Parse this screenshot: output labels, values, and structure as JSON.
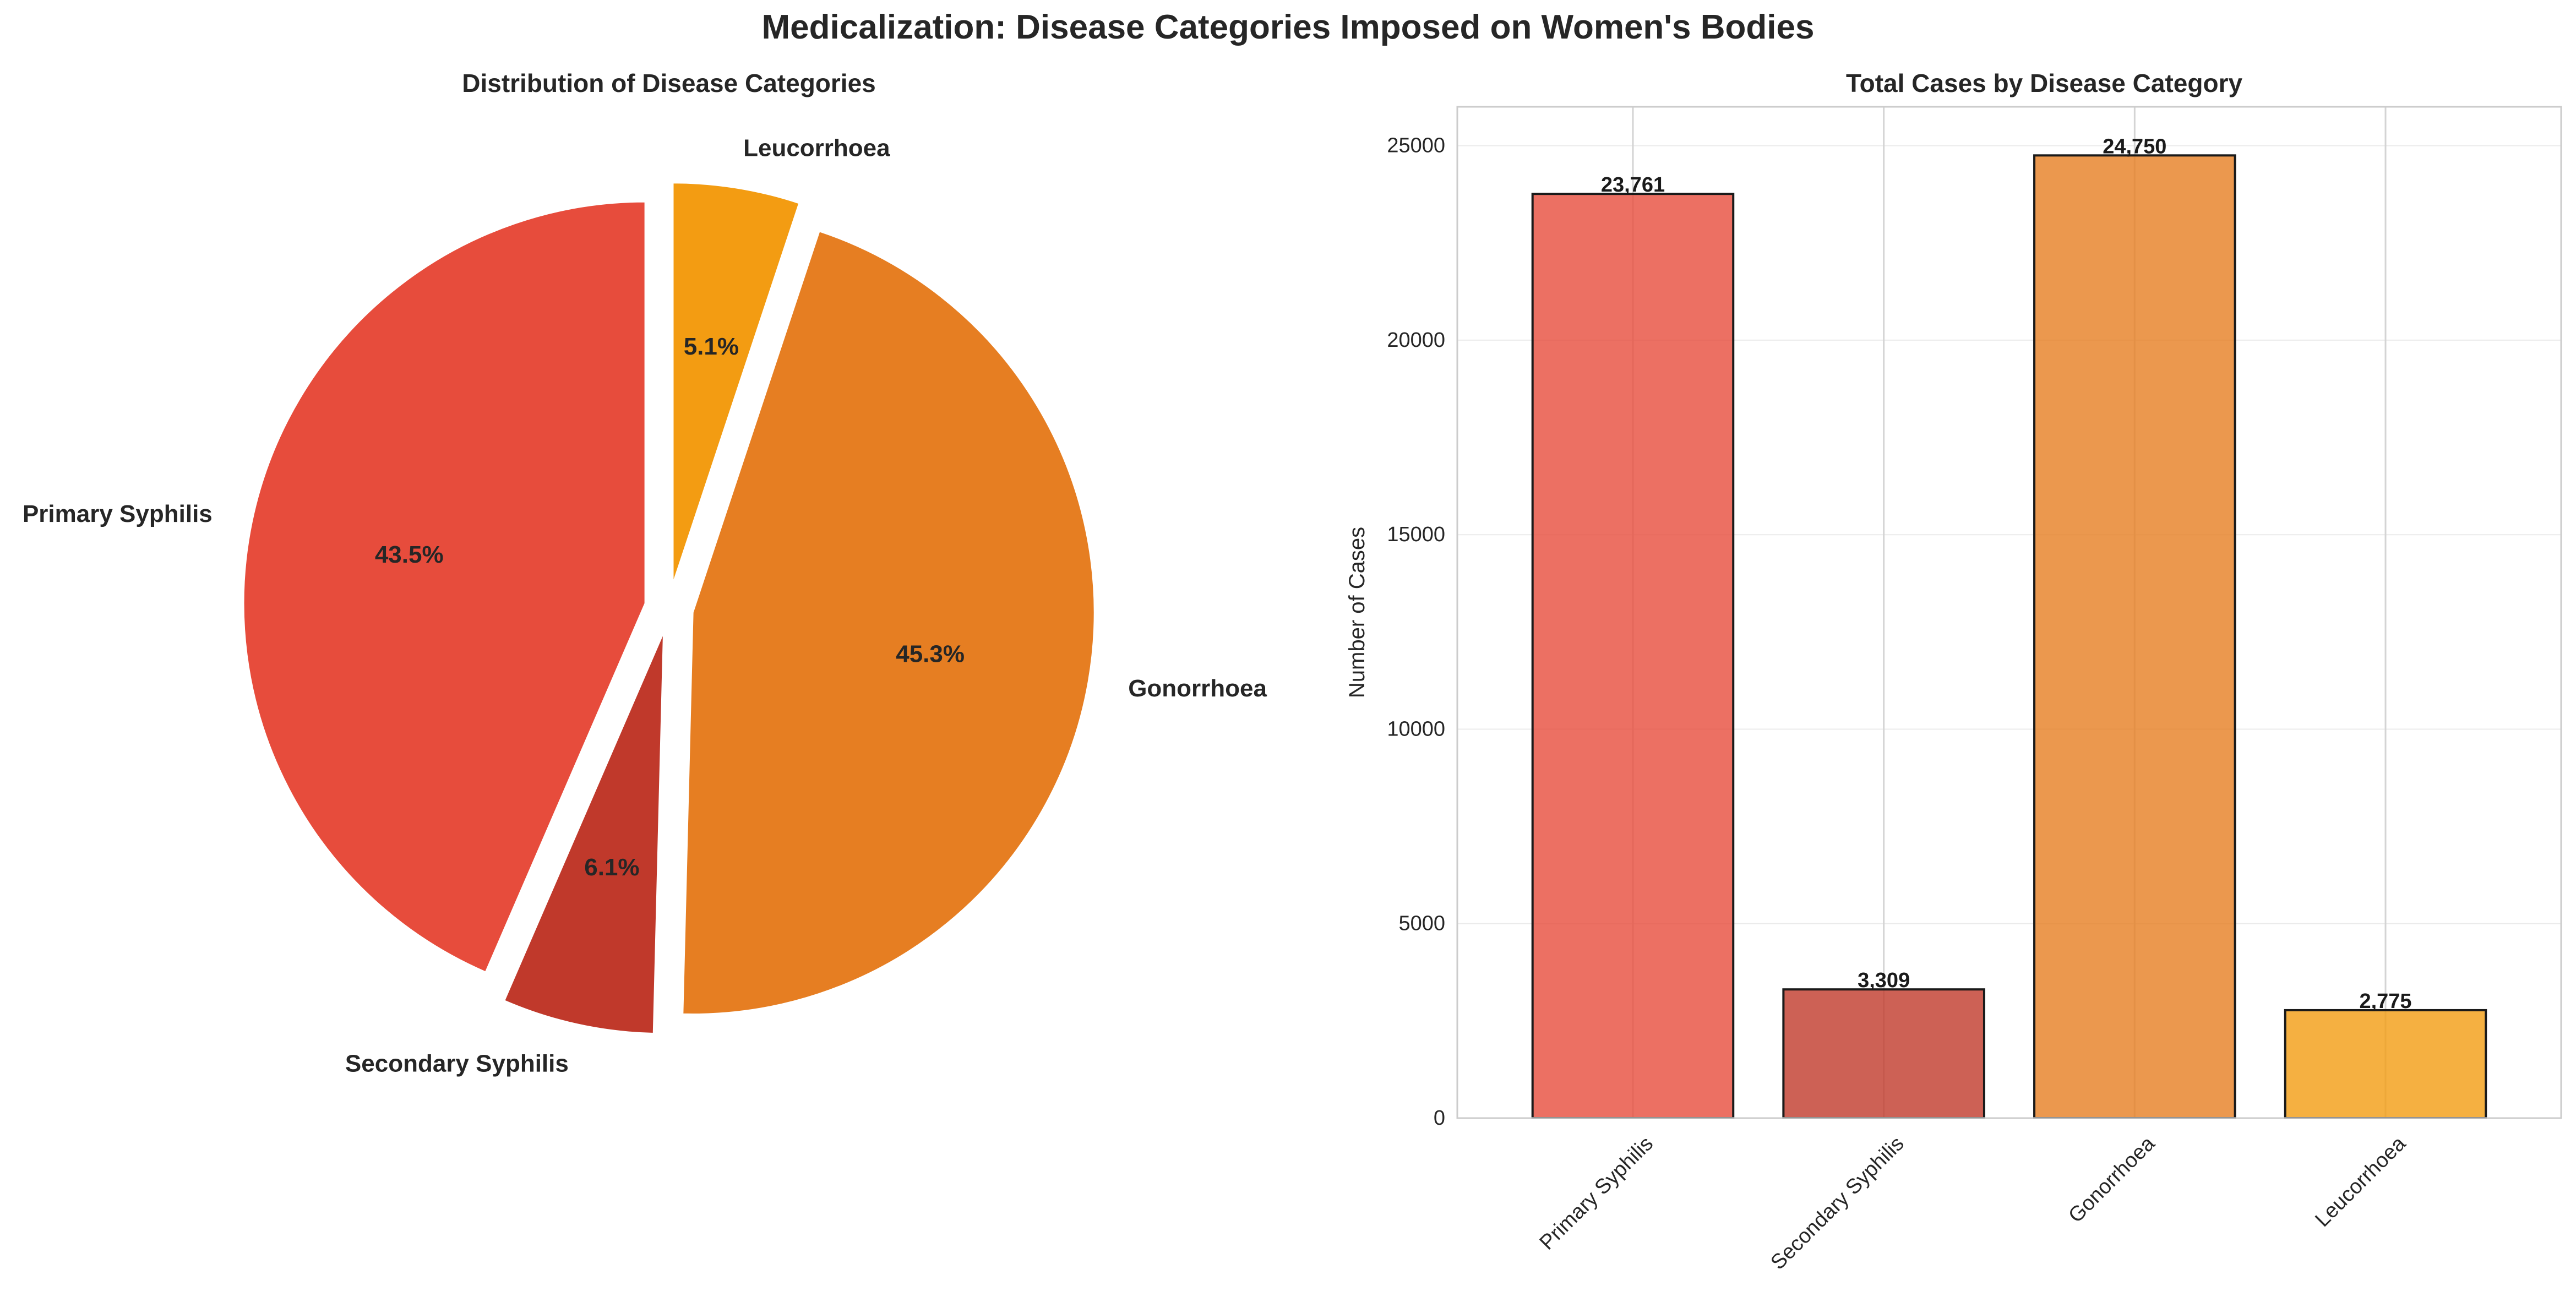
{
  "title": "Medicalization: Disease Categories Imposed on Women's Bodies",
  "chart_data": [
    {
      "type": "pie",
      "title": "Distribution of Disease Categories",
      "labels": [
        "Primary Syphilis",
        "Secondary Syphilis",
        "Gonorrhoea",
        "Leucorrhoea"
      ],
      "values": [
        43.5,
        6.1,
        45.3,
        5.1
      ],
      "value_labels": [
        "43.5%",
        "6.1%",
        "45.3%",
        "5.1%"
      ],
      "colors": [
        "#e74c3c",
        "#c0392b",
        "#e67e22",
        "#f39c12"
      ],
      "exploded": true
    },
    {
      "type": "bar",
      "title": "Total Cases by Disease Category",
      "categories": [
        "Primary Syphilis",
        "Secondary Syphilis",
        "Gonorrhoea",
        "Leucorrhoea"
      ],
      "values": [
        23761,
        3309,
        24750,
        2775
      ],
      "value_labels": [
        "23,761",
        "3,309",
        "24,750",
        "2,775"
      ],
      "colors": [
        "#e74c3c",
        "#c0392b",
        "#e67e22",
        "#f39c12"
      ],
      "xlabel": "",
      "ylabel": "Number of Cases",
      "ylim": [
        0,
        26000
      ],
      "yticks": [
        0,
        5000,
        10000,
        15000,
        20000,
        25000
      ],
      "ytick_labels": [
        "0",
        "5000",
        "10000",
        "15000",
        "20000",
        "25000"
      ],
      "grid": true
    }
  ]
}
